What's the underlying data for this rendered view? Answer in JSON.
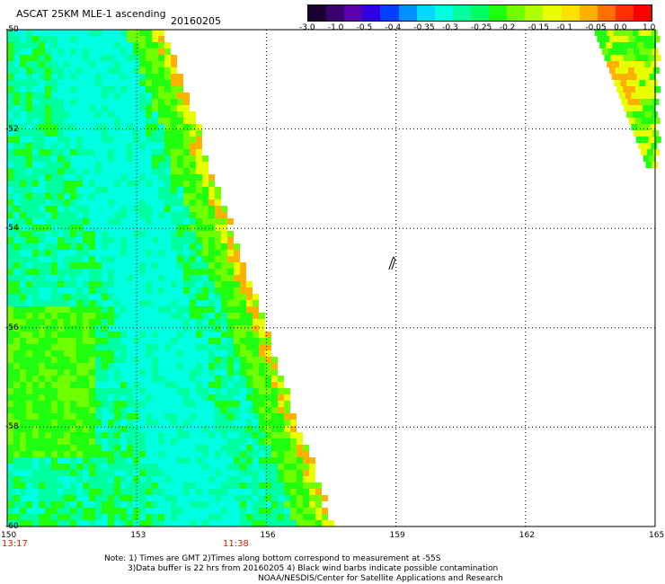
{
  "header": {
    "title": "ASCAT 25KM MLE-1 ascending",
    "date": "20160205"
  },
  "colorbar": {
    "labels": [
      "-3.0",
      "-1.0",
      "-0.5",
      "-0.4",
      "-0.35",
      "-0.3",
      "-0.25",
      "-0.2",
      "-0.15",
      "-0.1",
      "-0.05",
      "0.0",
      "1.0"
    ],
    "colors": [
      "#1a0030",
      "#3a0070",
      "#5a00b0",
      "#3000e0",
      "#0040ff",
      "#0090ff",
      "#00d8ff",
      "#00ffe0",
      "#00ffa0",
      "#00ff60",
      "#20ff10",
      "#70ff00",
      "#b0ff00",
      "#e8ff00",
      "#ffe000",
      "#ffb000",
      "#ff7000",
      "#ff3000",
      "#ff0000"
    ]
  },
  "axes": {
    "lat_labels": [
      "-50",
      "-52",
      "-54",
      "-56",
      "-58",
      "-60"
    ],
    "lon_labels": [
      "150",
      "153",
      "156",
      "159",
      "162",
      "165"
    ],
    "xlim": [
      150,
      165
    ],
    "ylim": [
      -60,
      -50
    ]
  },
  "times": {
    "left": "13:17",
    "mid": "11:38",
    "color": "#d02000"
  },
  "map_data": {
    "swath_west": {
      "lon_range": [
        150.0,
        157.5
      ],
      "colors": [
        "#00ffe0",
        "#00ffa0",
        "#20ff10",
        "#70ff00",
        "#e8ff00",
        "#ffb000"
      ]
    },
    "swath_east": {
      "lon_range": [
        163.5,
        165.0
      ],
      "colors": [
        "#20ff10",
        "#70ff00",
        "#e8ff00",
        "#ffb000"
      ]
    },
    "wind_barb": {
      "lon": 158.9,
      "lat": -54.7
    }
  },
  "footnote": {
    "line1": "Note: 1) Times are GMT 2)Times along bottom correspond to measurement at -55S",
    "line2": "3)Data buffer is 22 hrs from 20160205 4) Black wind barbs indicate possible contamination",
    "line3": "NOAA/NESDIS/Center for Satellite Applications and Research"
  }
}
